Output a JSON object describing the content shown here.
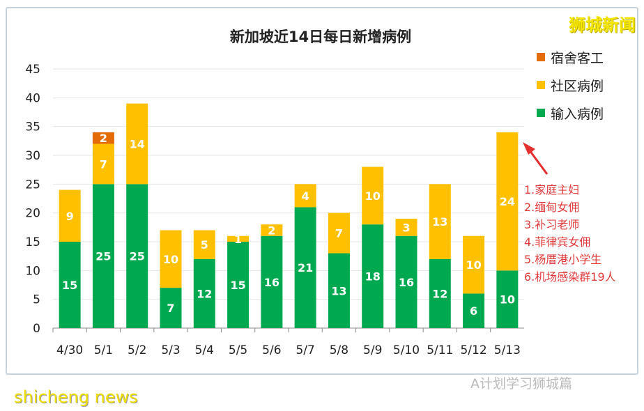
{
  "brand": "狮城新闻",
  "notes": [
    "1.家庭主妇",
    "2.缅甸女佣",
    "3.补习老师",
    "4.菲律宾女佣",
    "5.杨厝港小学生",
    "6.机场感染群19人"
  ],
  "watermark": "A计划学习狮城篇",
  "watermark2": "shicheng news",
  "chart_data": {
    "type": "bar",
    "stacked": true,
    "title": "新加坡近14日每日新增病例",
    "categories": [
      "4/30",
      "5/1",
      "5/2",
      "5/3",
      "5/4",
      "5/5",
      "5/6",
      "5/7",
      "5/8",
      "5/9",
      "5/10",
      "5/11",
      "5/12",
      "5/13"
    ],
    "series": [
      {
        "name": "输入病例",
        "color": "#00a84f",
        "values": [
          15,
          25,
          25,
          7,
          12,
          15,
          16,
          21,
          13,
          18,
          16,
          12,
          6,
          10
        ]
      },
      {
        "name": "社区病例",
        "color": "#ffc000",
        "values": [
          9,
          7,
          14,
          10,
          5,
          1,
          2,
          4,
          7,
          10,
          3,
          13,
          10,
          24
        ]
      },
      {
        "name": "宿舍客工",
        "color": "#e36c09",
        "values": [
          0,
          2,
          0,
          0,
          0,
          0,
          0,
          0,
          0,
          0,
          0,
          0,
          0,
          0
        ]
      }
    ],
    "legend_order": [
      "宿舍客工",
      "社区病例",
      "输入病例"
    ],
    "ylim": [
      0,
      45
    ],
    "yticks": [
      0,
      5,
      10,
      15,
      20,
      25,
      30,
      35,
      40,
      45
    ],
    "grid": true,
    "legend": "right"
  }
}
